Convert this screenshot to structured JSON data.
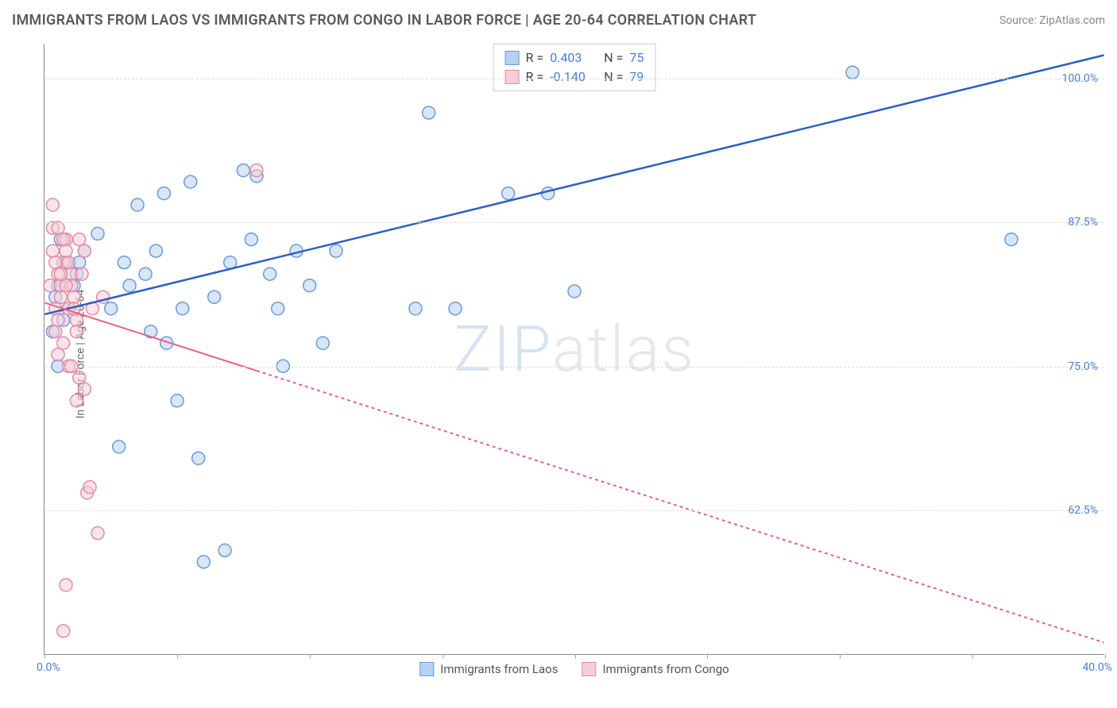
{
  "title": "IMMIGRANTS FROM LAOS VS IMMIGRANTS FROM CONGO IN LABOR FORCE | AGE 20-64 CORRELATION CHART",
  "source_label": "Source: ",
  "source_name": "ZipAtlas.com",
  "y_axis_label": "In Labor Force | Age 20-64",
  "watermark_a": "ZIP",
  "watermark_b": "atlas",
  "chart": {
    "type": "scatter",
    "xlim": [
      0,
      40
    ],
    "ylim": [
      50,
      103
    ],
    "x_ticks": [
      0,
      5,
      10,
      15,
      20,
      25,
      30,
      35,
      40
    ],
    "y_ticks": [
      62.5,
      75.0,
      87.5,
      100.0
    ],
    "y_tick_labels": [
      "62.5%",
      "75.0%",
      "87.5%",
      "100.0%"
    ],
    "x_min_label": "0.0%",
    "x_max_label": "40.0%",
    "background_color": "#ffffff",
    "grid_color": "#dddddd",
    "axis_color": "#888888",
    "tick_label_color": "#4a7dd4",
    "marker_radius": 8,
    "marker_opacity": 0.55,
    "series": [
      {
        "name": "Immigrants from Laos",
        "color_fill": "#b9d1f0",
        "color_stroke": "#6a9ad8",
        "line_color": "#2d5fc4",
        "line_width": 2.5,
        "line_dash": "none",
        "trend": {
          "x1": 0,
          "y1": 79.5,
          "x2": 40,
          "y2": 102
        },
        "R": "0.403",
        "N": "75",
        "points": [
          [
            0.5,
            82
          ],
          [
            0.6,
            86
          ],
          [
            0.3,
            78
          ],
          [
            0.8,
            84
          ],
          [
            0.4,
            81
          ],
          [
            1.2,
            83
          ],
          [
            0.9,
            80
          ],
          [
            1.5,
            85
          ],
          [
            0.7,
            79
          ],
          [
            1.1,
            82
          ],
          [
            0.5,
            75
          ],
          [
            1.3,
            84
          ],
          [
            2.0,
            86.5
          ],
          [
            2.5,
            80
          ],
          [
            2.8,
            68
          ],
          [
            3.0,
            84
          ],
          [
            3.5,
            89
          ],
          [
            3.2,
            82
          ],
          [
            3.8,
            83
          ],
          [
            4.0,
            78
          ],
          [
            4.5,
            90
          ],
          [
            4.2,
            85
          ],
          [
            4.6,
            77
          ],
          [
            5.0,
            72
          ],
          [
            5.5,
            91
          ],
          [
            5.2,
            80
          ],
          [
            5.8,
            67
          ],
          [
            6.0,
            58
          ],
          [
            6.4,
            81
          ],
          [
            6.8,
            59
          ],
          [
            7.0,
            84
          ],
          [
            7.5,
            92
          ],
          [
            7.8,
            86
          ],
          [
            8.0,
            91.5
          ],
          [
            8.5,
            83
          ],
          [
            8.8,
            80
          ],
          [
            9.0,
            75
          ],
          [
            9.5,
            85
          ],
          [
            10.0,
            82
          ],
          [
            10.5,
            77
          ],
          [
            11.0,
            85
          ],
          [
            14.5,
            97
          ],
          [
            14.0,
            80
          ],
          [
            15.5,
            80
          ],
          [
            17.5,
            90
          ],
          [
            19.0,
            90
          ],
          [
            20.0,
            81.5
          ],
          [
            30.5,
            100.5
          ],
          [
            36.5,
            86
          ]
        ]
      },
      {
        "name": "Immigrants from Congo",
        "color_fill": "#f6cdd8",
        "color_stroke": "#e28ba4",
        "line_color": "#e95f89",
        "line_width": 2,
        "line_dash": "4 4",
        "solid_until_x": 8,
        "trend": {
          "x1": 0,
          "y1": 80.5,
          "x2": 40,
          "y2": 51
        },
        "R": "-0.140",
        "N": "79",
        "points": [
          [
            0.2,
            82
          ],
          [
            0.3,
            85
          ],
          [
            0.4,
            80
          ],
          [
            0.5,
            83
          ],
          [
            0.3,
            87
          ],
          [
            0.6,
            81
          ],
          [
            0.4,
            78
          ],
          [
            0.7,
            84
          ],
          [
            0.5,
            79
          ],
          [
            0.8,
            86
          ],
          [
            0.6,
            82
          ],
          [
            0.9,
            80
          ],
          [
            0.7,
            77
          ],
          [
            1.0,
            83
          ],
          [
            0.8,
            85
          ],
          [
            1.1,
            81
          ],
          [
            0.9,
            84
          ],
          [
            1.2,
            79
          ],
          [
            1.0,
            82
          ],
          [
            1.3,
            86
          ],
          [
            1.1,
            80
          ],
          [
            1.4,
            83
          ],
          [
            1.2,
            78
          ],
          [
            1.5,
            85
          ],
          [
            0.3,
            89
          ],
          [
            0.5,
            87
          ],
          [
            0.7,
            86
          ],
          [
            0.4,
            84
          ],
          [
            0.6,
            83
          ],
          [
            0.8,
            82
          ],
          [
            0.5,
            76
          ],
          [
            0.9,
            75
          ],
          [
            1.3,
            74
          ],
          [
            1.0,
            75
          ],
          [
            1.6,
            64
          ],
          [
            1.7,
            64.5
          ],
          [
            0.8,
            56
          ],
          [
            2.0,
            60.5
          ],
          [
            1.2,
            72
          ],
          [
            1.5,
            73
          ],
          [
            1.8,
            80
          ],
          [
            2.2,
            81
          ],
          [
            0.7,
            52
          ],
          [
            8.0,
            92
          ]
        ]
      }
    ]
  },
  "stats_box": {
    "rows": [
      {
        "swatch_fill": "#b9d1f0",
        "swatch_stroke": "#6a9ad8",
        "r_label": "R =",
        "r_val": "0.403",
        "n_label": "N =",
        "n_val": "75"
      },
      {
        "swatch_fill": "#f6cdd8",
        "swatch_stroke": "#e28ba4",
        "r_label": "R =",
        "r_val": "-0.140",
        "n_label": "N =",
        "n_val": "79"
      }
    ]
  },
  "legend": [
    {
      "swatch_fill": "#b9d1f0",
      "swatch_stroke": "#6a9ad8",
      "label": "Immigrants from Laos"
    },
    {
      "swatch_fill": "#f6cdd8",
      "swatch_stroke": "#e28ba4",
      "label": "Immigrants from Congo"
    }
  ]
}
